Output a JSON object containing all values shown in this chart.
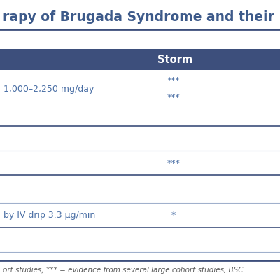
{
  "title": "rapy of Brugada Syndrome and their Utili",
  "header_bg": "#3d4f7c",
  "header_text_color": "#ffffff",
  "header_label": "Storm",
  "bg_color": "#ffffff",
  "title_color": "#3d5a8a",
  "cell_text_color": "#4a6fa5",
  "footnote_color": "#5a5a5a",
  "line_color_light": "#a0b0cc",
  "line_color_dark": "#3d4f7c",
  "footnote": "ort studies; *** = evidence from several large cohort studies, BSC",
  "figsize": [
    4.0,
    4.0
  ],
  "dpi": 100
}
